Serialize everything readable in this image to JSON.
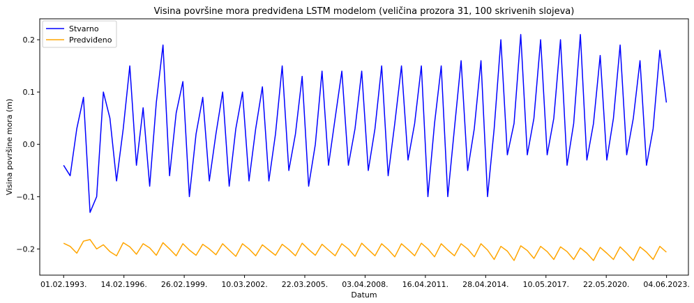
{
  "chart_data": {
    "type": "line",
    "title": "Visina površine mora predviđena LSTM modelom (veličina prozora 31, 100 skrivenih slojeva)",
    "xlabel": "Datum",
    "ylabel": "Visina površine mora (m)",
    "x_range": [
      "1991-11-20",
      "2024-07-10"
    ],
    "ylim": [
      -0.25,
      0.24
    ],
    "x_ticks": [
      {
        "date": "1993-02-01",
        "label": "01.02.1993."
      },
      {
        "date": "1996-02-14",
        "label": "14.02.1996."
      },
      {
        "date": "1999-02-26",
        "label": "26.02.1999."
      },
      {
        "date": "2002-03-10",
        "label": "10.03.2002."
      },
      {
        "date": "2005-03-22",
        "label": "22.03.2005."
      },
      {
        "date": "2008-04-03",
        "label": "03.04.2008."
      },
      {
        "date": "2011-04-16",
        "label": "16.04.2011."
      },
      {
        "date": "2014-04-28",
        "label": "28.04.2014."
      },
      {
        "date": "2017-05-10",
        "label": "10.05.2017."
      },
      {
        "date": "2020-05-22",
        "label": "22.05.2020."
      },
      {
        "date": "2023-06-04",
        "label": "04.06.2023."
      }
    ],
    "y_ticks": [
      {
        "value": -0.2,
        "label": "−0.2"
      },
      {
        "value": -0.1,
        "label": "−0.1"
      },
      {
        "value": 0.0,
        "label": "0.0"
      },
      {
        "value": 0.1,
        "label": "0.1"
      },
      {
        "value": 0.2,
        "label": "0.2"
      }
    ],
    "grid": false,
    "legend_position": "top-left",
    "series": [
      {
        "name": "Stvarno",
        "color": "#0000ff",
        "x": [
          "1993-02-01",
          "1993-06-01",
          "1993-10-01",
          "1994-02-01",
          "1994-06-01",
          "1994-10-01",
          "1995-02-01",
          "1995-06-01",
          "1995-10-01",
          "1996-02-01",
          "1996-06-01",
          "1996-10-01",
          "1997-02-01",
          "1997-06-01",
          "1997-10-01",
          "1998-02-01",
          "1998-06-01",
          "1998-10-01",
          "1999-02-01",
          "1999-06-01",
          "1999-10-01",
          "2000-02-01",
          "2000-06-01",
          "2000-10-01",
          "2001-02-01",
          "2001-06-01",
          "2001-10-01",
          "2002-02-01",
          "2002-06-01",
          "2002-10-01",
          "2003-02-01",
          "2003-06-01",
          "2003-10-01",
          "2004-02-01",
          "2004-06-01",
          "2004-10-01",
          "2005-02-01",
          "2005-06-01",
          "2005-10-01",
          "2006-02-01",
          "2006-06-01",
          "2006-10-01",
          "2007-02-01",
          "2007-06-01",
          "2007-10-01",
          "2008-02-01",
          "2008-06-01",
          "2008-10-01",
          "2009-02-01",
          "2009-06-01",
          "2009-10-01",
          "2010-02-01",
          "2010-06-01",
          "2010-10-01",
          "2011-02-01",
          "2011-06-01",
          "2011-10-01",
          "2012-02-01",
          "2012-06-01",
          "2012-10-01",
          "2013-02-01",
          "2013-06-01",
          "2013-10-01",
          "2014-02-01",
          "2014-06-01",
          "2014-10-01",
          "2015-02-01",
          "2015-06-01",
          "2015-10-01",
          "2016-02-01",
          "2016-06-01",
          "2016-10-01",
          "2017-02-01",
          "2017-06-01",
          "2017-10-01",
          "2018-02-01",
          "2018-06-01",
          "2018-10-01",
          "2019-02-01",
          "2019-06-01",
          "2019-10-01",
          "2020-02-01",
          "2020-06-01",
          "2020-10-01",
          "2021-02-01",
          "2021-06-01",
          "2021-10-01",
          "2022-02-01",
          "2022-06-01",
          "2022-10-01",
          "2023-02-01",
          "2023-06-01"
        ],
        "y": [
          -0.04,
          -0.06,
          0.03,
          0.09,
          -0.13,
          -0.1,
          0.1,
          0.05,
          -0.07,
          0.03,
          0.15,
          -0.04,
          0.07,
          -0.08,
          0.08,
          0.19,
          -0.06,
          0.06,
          0.12,
          -0.1,
          0.02,
          0.09,
          -0.07,
          0.02,
          0.1,
          -0.08,
          0.03,
          0.1,
          -0.07,
          0.03,
          0.11,
          -0.07,
          0.02,
          0.15,
          -0.05,
          0.02,
          0.13,
          -0.08,
          0.0,
          0.14,
          -0.04,
          0.05,
          0.14,
          -0.04,
          0.03,
          0.14,
          -0.05,
          0.03,
          0.15,
          -0.06,
          0.04,
          0.15,
          -0.03,
          0.04,
          0.15,
          -0.1,
          0.04,
          0.15,
          -0.1,
          0.03,
          0.16,
          -0.05,
          0.03,
          0.16,
          -0.1,
          0.03,
          0.2,
          -0.02,
          0.04,
          0.21,
          -0.02,
          0.05,
          0.2,
          -0.02,
          0.05,
          0.2,
          -0.04,
          0.04,
          0.21,
          -0.03,
          0.04,
          0.17,
          -0.03,
          0.05,
          0.19,
          -0.02,
          0.05,
          0.16,
          -0.04,
          0.03,
          0.18,
          0.08
        ]
      },
      {
        "name": "Predviđeno",
        "color": "#ffa500",
        "x": [
          "1993-02-01",
          "1993-06-01",
          "1993-10-01",
          "1994-02-01",
          "1994-06-01",
          "1994-10-01",
          "1995-02-01",
          "1995-06-01",
          "1995-10-01",
          "1996-02-01",
          "1996-06-01",
          "1996-10-01",
          "1997-02-01",
          "1997-06-01",
          "1997-10-01",
          "1998-02-01",
          "1998-06-01",
          "1998-10-01",
          "1999-02-01",
          "1999-06-01",
          "1999-10-01",
          "2000-02-01",
          "2000-06-01",
          "2000-10-01",
          "2001-02-01",
          "2001-06-01",
          "2001-10-01",
          "2002-02-01",
          "2002-06-01",
          "2002-10-01",
          "2003-02-01",
          "2003-06-01",
          "2003-10-01",
          "2004-02-01",
          "2004-06-01",
          "2004-10-01",
          "2005-02-01",
          "2005-06-01",
          "2005-10-01",
          "2006-02-01",
          "2006-06-01",
          "2006-10-01",
          "2007-02-01",
          "2007-06-01",
          "2007-10-01",
          "2008-02-01",
          "2008-06-01",
          "2008-10-01",
          "2009-02-01",
          "2009-06-01",
          "2009-10-01",
          "2010-02-01",
          "2010-06-01",
          "2010-10-01",
          "2011-02-01",
          "2011-06-01",
          "2011-10-01",
          "2012-02-01",
          "2012-06-01",
          "2012-10-01",
          "2013-02-01",
          "2013-06-01",
          "2013-10-01",
          "2014-02-01",
          "2014-06-01",
          "2014-10-01",
          "2015-02-01",
          "2015-06-01",
          "2015-10-01",
          "2016-02-01",
          "2016-06-01",
          "2016-10-01",
          "2017-02-01",
          "2017-06-01",
          "2017-10-01",
          "2018-02-01",
          "2018-06-01",
          "2018-10-01",
          "2019-02-01",
          "2019-06-01",
          "2019-10-01",
          "2020-02-01",
          "2020-06-01",
          "2020-10-01",
          "2021-02-01",
          "2021-06-01",
          "2021-10-01",
          "2022-02-01",
          "2022-06-01",
          "2022-10-01",
          "2023-02-01",
          "2023-06-01"
        ],
        "y": [
          -0.189,
          -0.195,
          -0.208,
          -0.185,
          -0.182,
          -0.2,
          -0.192,
          -0.205,
          -0.213,
          -0.188,
          -0.196,
          -0.21,
          -0.19,
          -0.198,
          -0.212,
          -0.188,
          -0.2,
          -0.213,
          -0.19,
          -0.202,
          -0.212,
          -0.191,
          -0.2,
          -0.211,
          -0.19,
          -0.202,
          -0.214,
          -0.19,
          -0.2,
          -0.213,
          -0.192,
          -0.202,
          -0.212,
          -0.191,
          -0.201,
          -0.213,
          -0.189,
          -0.201,
          -0.212,
          -0.191,
          -0.202,
          -0.213,
          -0.19,
          -0.2,
          -0.214,
          -0.189,
          -0.201,
          -0.213,
          -0.19,
          -0.201,
          -0.215,
          -0.19,
          -0.201,
          -0.213,
          -0.189,
          -0.2,
          -0.215,
          -0.19,
          -0.202,
          -0.213,
          -0.19,
          -0.2,
          -0.215,
          -0.19,
          -0.202,
          -0.22,
          -0.195,
          -0.204,
          -0.222,
          -0.194,
          -0.203,
          -0.218,
          -0.195,
          -0.205,
          -0.22,
          -0.196,
          -0.205,
          -0.22,
          -0.198,
          -0.208,
          -0.222,
          -0.197,
          -0.208,
          -0.22,
          -0.196,
          -0.208,
          -0.222,
          -0.196,
          -0.206,
          -0.22,
          -0.195,
          -0.206
        ]
      }
    ]
  }
}
